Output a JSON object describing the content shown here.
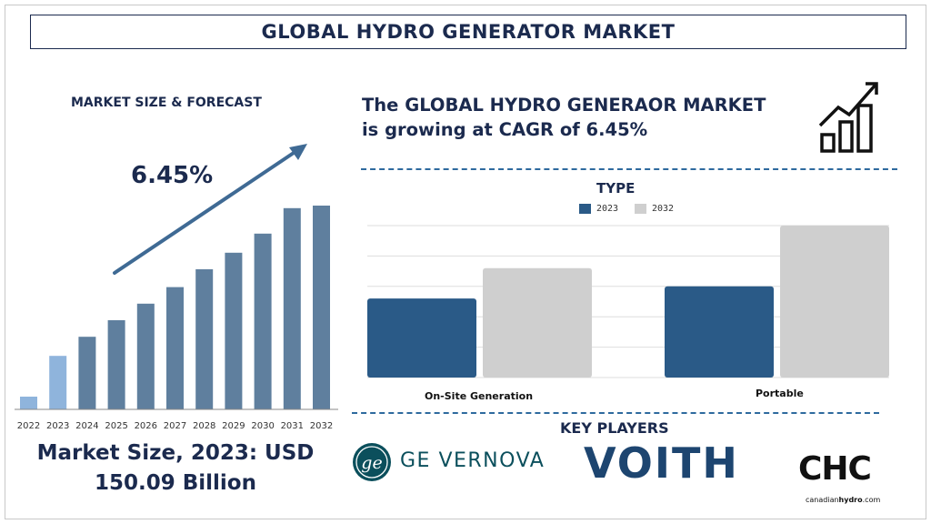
{
  "header": {
    "title": "GLOBAL HYDRO GENERATOR MARKET"
  },
  "left_panel": {
    "subtitle": "MARKET SIZE & FORECAST",
    "cagr": "6.45%",
    "market_size_line1": "Market Size, 2023: USD",
    "market_size_line2": "150.09 Billion"
  },
  "right_panel": {
    "headline_line1": "The GLOBAL HYDRO GENERAOR MARKET",
    "headline_line2": "is growing at CAGR of 6.45%",
    "key_players_title": "KEY PLAYERS"
  },
  "icons": {
    "growth_chart": "growth-chart-icon"
  },
  "key_players": {
    "ge": {
      "name": "GE VERNOVA",
      "color": "#0b4f5c"
    },
    "voith": {
      "name": "VOITH",
      "color": "#1d4570"
    },
    "chc": {
      "name": "CHC",
      "website_light": "canadian",
      "website_bold": "hydro",
      "website_suffix": ".com",
      "color": "#111111"
    }
  },
  "colors": {
    "navy": "#1b2a4e",
    "bar_blue_gray": "#5f7f9e",
    "bar_light_blue": "#8fb4dc",
    "series_2023": "#2a5a87",
    "series_2032": "#cfcfcf",
    "dash": "#2e6a9e"
  },
  "chart_data": [
    {
      "type": "bar",
      "title": "",
      "categories": [
        "2022",
        "2023",
        "2024",
        "2025",
        "2026",
        "2027",
        "2028",
        "2029",
        "2030",
        "2031",
        "2032"
      ],
      "values": [
        1.0,
        4.2,
        5.7,
        7.0,
        8.3,
        9.6,
        11.0,
        12.3,
        13.8,
        15.8,
        16.0
      ],
      "highlight": [
        "2022",
        "2023"
      ],
      "trend_arrow": true,
      "ylim": [
        0,
        17
      ],
      "grid": false,
      "legend": "none"
    },
    {
      "type": "bar",
      "title": "TYPE",
      "categories": [
        "On-Site Generation",
        "Portable"
      ],
      "series": [
        {
          "name": "2023",
          "values": [
            2.6,
            3.0
          ]
        },
        {
          "name": "2032",
          "values": [
            3.6,
            5.0
          ]
        }
      ],
      "ylim": [
        0,
        5.0
      ],
      "grid": true,
      "legend": "top"
    }
  ]
}
